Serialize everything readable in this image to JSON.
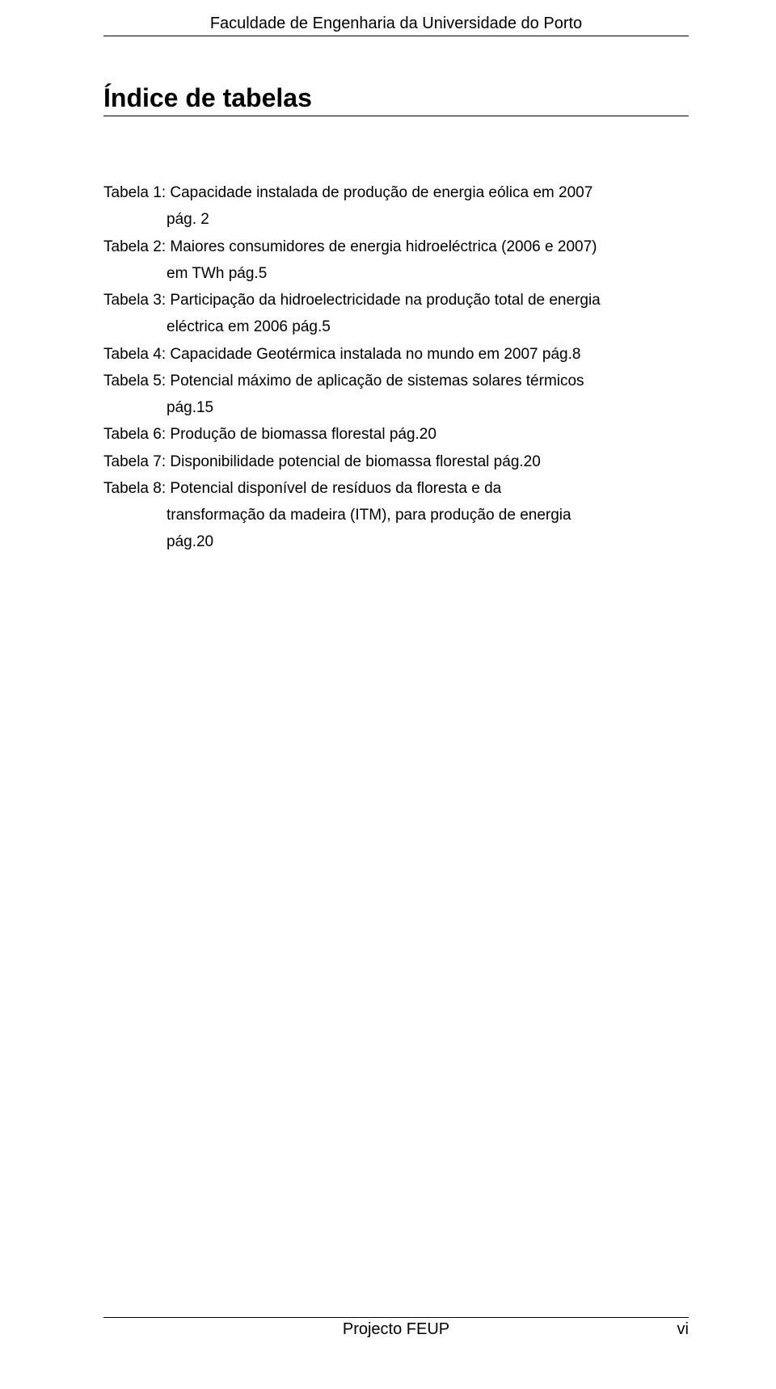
{
  "header": {
    "institution": "Faculdade de Engenharia da Universidade do Porto"
  },
  "title": "Índice de tabelas",
  "entries": [
    {
      "lines": [
        {
          "text": "Tabela 1: Capacidade instalada de produção de energia eólica em 2007",
          "indent": false
        },
        {
          "text": "pág. 2",
          "indent": true
        }
      ]
    },
    {
      "lines": [
        {
          "text": "Tabela 2: Maiores consumidores de energia hidroeléctrica (2006 e 2007)",
          "indent": false
        },
        {
          "text": "em TWh pág.5",
          "indent": true
        }
      ]
    },
    {
      "lines": [
        {
          "text": "Tabela 3: Participação da hidroelectricidade na produção total de energia",
          "indent": false
        },
        {
          "text": "eléctrica em 2006 pág.5",
          "indent": true
        }
      ]
    },
    {
      "lines": [
        {
          "text": "Tabela 4: Capacidade Geotérmica instalada no mundo em 2007 pág.8",
          "indent": false
        }
      ]
    },
    {
      "lines": [
        {
          "text": "Tabela 5: Potencial máximo de aplicação de sistemas solares térmicos",
          "indent": false
        },
        {
          "text": "pág.15",
          "indent": true
        }
      ]
    },
    {
      "lines": [
        {
          "text": "Tabela 6: Produção de biomassa florestal pág.20",
          "indent": false
        }
      ]
    },
    {
      "lines": [
        {
          "text": "Tabela 7: Disponibilidade potencial de biomassa florestal pág.20",
          "indent": false
        }
      ]
    },
    {
      "lines": [
        {
          "text": "Tabela 8: Potencial disponível de resíduos da floresta e da",
          "indent": false
        },
        {
          "text": "transformação da madeira (ITM), para produção de energia",
          "indent": true
        },
        {
          "text": "pág.20",
          "indent": true
        }
      ]
    }
  ],
  "footer": {
    "project": "Projecto FEUP",
    "page_number": "vi"
  },
  "styles": {
    "text_color": "#000000",
    "background_color": "#ffffff",
    "rule_color": "#000000",
    "title_fontsize": 32,
    "body_fontsize": 19,
    "header_fontsize": 20
  }
}
